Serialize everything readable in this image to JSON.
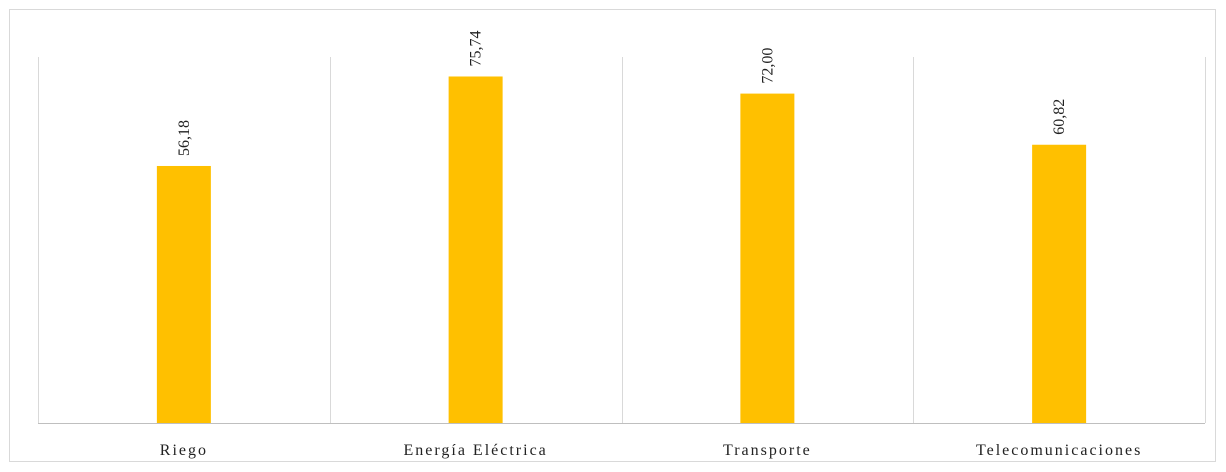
{
  "chart_data": {
    "type": "bar",
    "categories": [
      "Riego",
      "Energía Eléctrica",
      "Transporte",
      "Telecomunicaciones"
    ],
    "values": [
      56.18,
      75.74,
      72.0,
      60.82
    ],
    "data_labels": [
      "56,18",
      "75,74",
      "72,00",
      "60,82"
    ],
    "title": "",
    "xlabel": "",
    "ylabel": "",
    "ylim": [
      0,
      80
    ],
    "grid": "vertical category separators",
    "legend": "none",
    "bar_color": "#FFC000",
    "grid_color": "#d9d9d9",
    "axis_color": "#bfbfbf"
  }
}
